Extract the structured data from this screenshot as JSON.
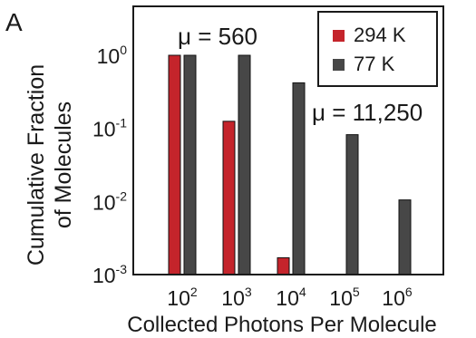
{
  "panel_label": "A",
  "colors": {
    "series_294K": "#c4242b",
    "series_77K": "#474747",
    "mu_294K": "#c4242b",
    "mu_77K": "#555555",
    "axis": "#1a1a1a"
  },
  "annotations": {
    "mu_294K": "μ = 560",
    "mu_77K": "μ = 11,250"
  },
  "chart_data": {
    "type": "bar",
    "xlabel": "Collected Photons Per Molecule",
    "ylabel_line1": "Cumulative Fraction",
    "ylabel_line2": "of Molecules",
    "yscale": "log",
    "ylim": [
      0.001,
      1.0
    ],
    "categories": [
      {
        "base": "10",
        "exp": "2"
      },
      {
        "base": "10",
        "exp": "3"
      },
      {
        "base": "10",
        "exp": "4"
      },
      {
        "base": "10",
        "exp": "5"
      },
      {
        "base": "10",
        "exp": "6"
      }
    ],
    "y_ticks": [
      {
        "value": 1.0,
        "base": "10",
        "exp": "0"
      },
      {
        "value": 0.1,
        "base": "10",
        "exp": "-1"
      },
      {
        "value": 0.01,
        "base": "10",
        "exp": "-2"
      },
      {
        "value": 0.001,
        "base": "10",
        "exp": "-3"
      }
    ],
    "series": [
      {
        "name": "294 K",
        "values": [
          1.0,
          0.125,
          0.0017,
          null,
          null
        ]
      },
      {
        "name": "77 K",
        "values": [
          1.0,
          1.0,
          0.42,
          0.082,
          0.0105
        ]
      }
    ],
    "legend": {
      "position": "top-right"
    },
    "grid": false
  }
}
